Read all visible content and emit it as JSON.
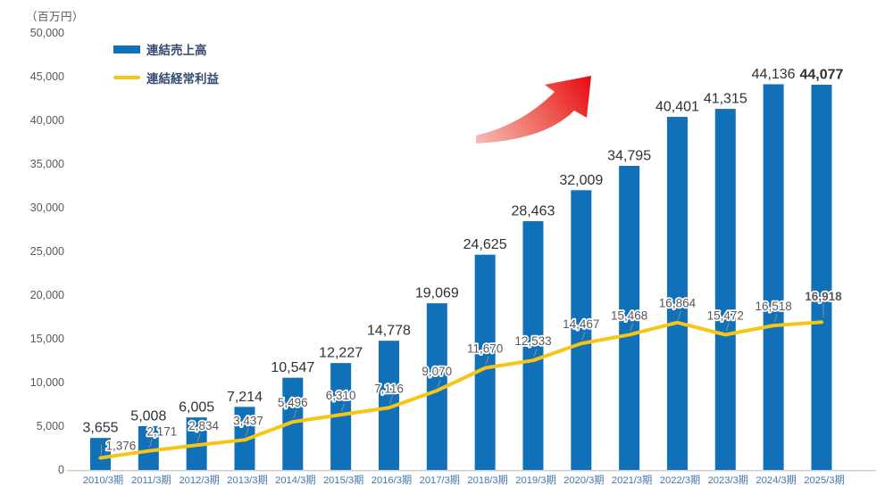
{
  "chart_data": {
    "type": "bar",
    "title": "",
    "unit_label": "（百万円）",
    "categories": [
      "2010/3期",
      "2011/3期",
      "2012/3期",
      "2013/3期",
      "2014/3期",
      "2015/3期",
      "2016/3期",
      "2017/3期",
      "2018/3期",
      "2019/3期",
      "2020/3期",
      "2021/3期",
      "2022/3期",
      "2023/3期",
      "2024/3期",
      "2025/3期"
    ],
    "series": [
      {
        "name": "連結売上高",
        "type": "bar",
        "values": [
          3655,
          5008,
          6005,
          7214,
          10547,
          12227,
          14778,
          19069,
          24625,
          28463,
          32009,
          34795,
          40401,
          41315,
          44136,
          44077
        ]
      },
      {
        "name": "連結経常利益",
        "type": "line",
        "values": [
          1376,
          2171,
          2834,
          3437,
          5496,
          6310,
          7116,
          9070,
          11670,
          12533,
          14467,
          15468,
          16864,
          15472,
          16518,
          16918
        ]
      }
    ],
    "ylim": [
      0,
      50000
    ],
    "ytick_step": 5000,
    "grid": false,
    "legend_position": "top-left",
    "bold_last_value": true,
    "annotations": [
      "growth-arrow"
    ]
  },
  "legend": {
    "sales_label": "連結売上高",
    "profit_label": "連結経常利益"
  },
  "colors": {
    "bar": "#1070b8",
    "line": "#f7c515",
    "bar_value_label": "#303030",
    "line_value_label": "#595757",
    "y_tick_label": "#595757",
    "x_tick_label": "#4575a9",
    "legend_text": "#344a6e",
    "axis_line": "#cccccc",
    "connector": "#8f8f8f",
    "arrow_gradient": [
      "#f5bdb8",
      "#ee6158",
      "#e50a12"
    ]
  }
}
